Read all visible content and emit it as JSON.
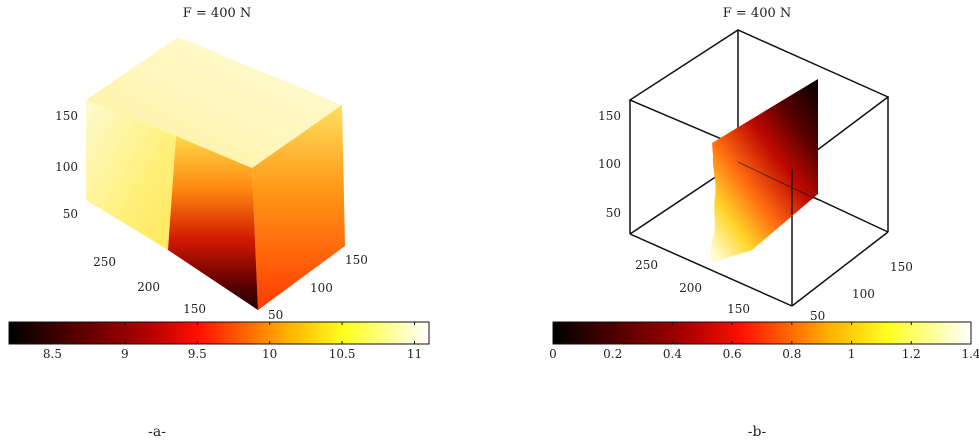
{
  "chart_data": [
    {
      "type": "heatmap",
      "subtype": "3d-volume-slice",
      "title": "F = 400 N",
      "caption": "-a-",
      "colormap": "hot",
      "view": "full cube with cut-away front-left corner",
      "axes": {
        "z_ticks": [
          "50",
          "100",
          "150"
        ],
        "y_ticks": [
          "150",
          "200",
          "250"
        ],
        "x_ticks": [
          "50",
          "100",
          "150"
        ]
      },
      "colorbar": {
        "orientation": "horizontal",
        "range": [
          8.2,
          11.1
        ],
        "ticks": [
          8.5,
          9,
          9.5,
          10,
          10.5,
          11
        ],
        "tick_labels": [
          "8.5",
          "9",
          "9.5",
          "10",
          "10.5",
          "11"
        ]
      }
    },
    {
      "type": "heatmap",
      "subtype": "3d-volume-slice",
      "title": "F = 400 N",
      "caption": "-b-",
      "colormap": "hot",
      "view": "single slice inside wireframe box",
      "axes": {
        "z_ticks": [
          "50",
          "100",
          "150"
        ],
        "y_ticks": [
          "150",
          "200",
          "250"
        ],
        "x_ticks": [
          "50",
          "100",
          "150"
        ]
      },
      "colorbar": {
        "orientation": "horizontal",
        "range": [
          0,
          1.4
        ],
        "ticks": [
          0,
          0.2,
          0.4,
          0.6,
          0.8,
          1,
          1.2,
          1.4
        ],
        "tick_labels": [
          "0",
          "0.2",
          "0.4",
          "0.6",
          "0.8",
          "1",
          "1.2",
          "1.4"
        ]
      }
    }
  ]
}
